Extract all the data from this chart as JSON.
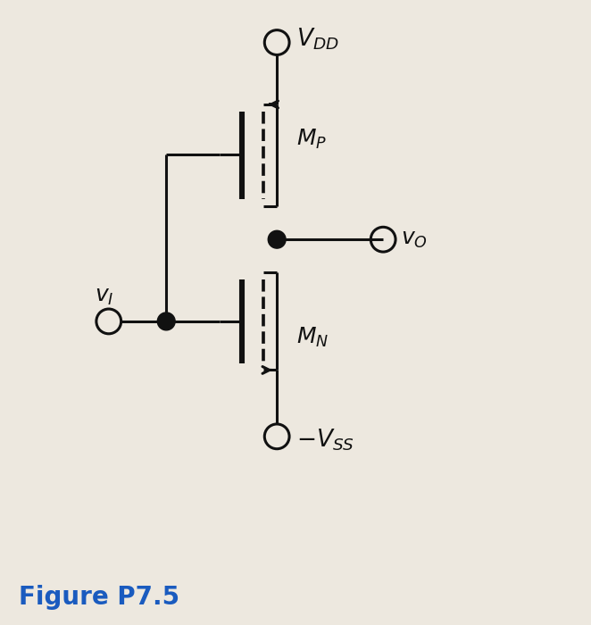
{
  "bg_color": "#ede8df",
  "line_color": "#111111",
  "figure_label": "Figure P7.5",
  "figure_label_color": "#1a5bbf",
  "figure_label_fontsize": 20,
  "VDD_label": "$V_{DD}$",
  "VSS_label": "$-V_{SS}$",
  "vI_label": "$v_I$",
  "vO_label": "$v_O$",
  "MP_label": "$M_P$",
  "MN_label": "$M_N$",
  "label_fontsize": 17,
  "lw": 2.2
}
